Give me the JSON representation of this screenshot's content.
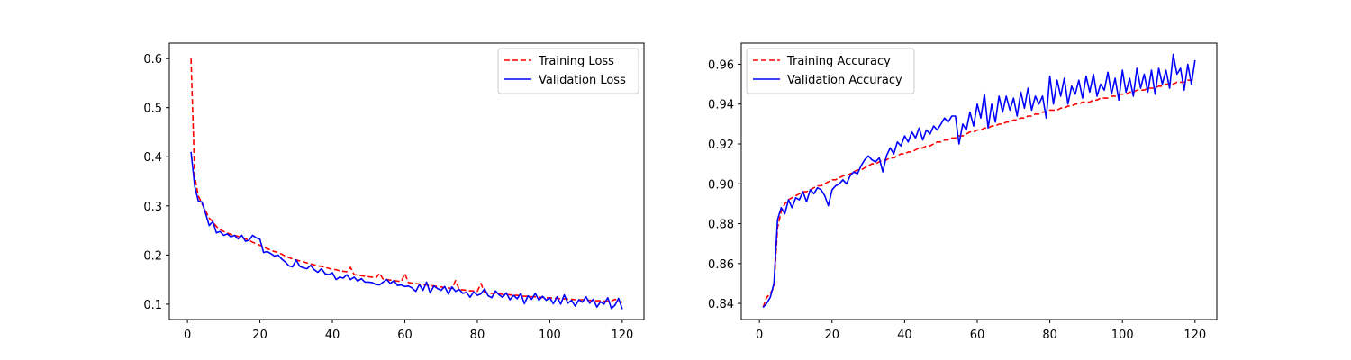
{
  "chart_data": [
    {
      "type": "line",
      "xlim": [
        -5,
        126
      ],
      "ylim": [
        0.0687,
        0.6314
      ],
      "xticks": [
        0,
        20,
        40,
        60,
        80,
        100,
        120
      ],
      "yticks": [
        0.1,
        0.2,
        0.3,
        0.4,
        0.5,
        0.6
      ],
      "xtick_labels": [
        "0",
        "20",
        "40",
        "60",
        "80",
        "100",
        "120"
      ],
      "ytick_labels": [
        "0.1",
        "0.2",
        "0.3",
        "0.4",
        "0.5",
        "0.6"
      ],
      "legend": "upper right",
      "grid": false,
      "series": [
        {
          "name": "Training Loss",
          "color": "#ff0000",
          "style": "dashed",
          "x_start": 1,
          "values": [
            0.6,
            0.36,
            0.32,
            0.305,
            0.29,
            0.275,
            0.268,
            0.258,
            0.252,
            0.248,
            0.245,
            0.242,
            0.24,
            0.238,
            0.236,
            0.233,
            0.23,
            0.226,
            0.223,
            0.22,
            0.217,
            0.213,
            0.21,
            0.207,
            0.205,
            0.202,
            0.198,
            0.195,
            0.192,
            0.19,
            0.188,
            0.186,
            0.184,
            0.182,
            0.18,
            0.178,
            0.177,
            0.175,
            0.173,
            0.171,
            0.17,
            0.168,
            0.167,
            0.166,
            0.175,
            0.16,
            0.159,
            0.158,
            0.157,
            0.156,
            0.155,
            0.153,
            0.163,
            0.151,
            0.15,
            0.149,
            0.148,
            0.147,
            0.146,
            0.162,
            0.144,
            0.143,
            0.142,
            0.141,
            0.14,
            0.139,
            0.138,
            0.137,
            0.136,
            0.135,
            0.134,
            0.133,
            0.132,
            0.148,
            0.13,
            0.129,
            0.128,
            0.127,
            0.127,
            0.126,
            0.142,
            0.124,
            0.123,
            0.122,
            0.122,
            0.121,
            0.12,
            0.12,
            0.119,
            0.118,
            0.118,
            0.117,
            0.116,
            0.116,
            0.115,
            0.115,
            0.114,
            0.114,
            0.113,
            0.113,
            0.112,
            0.112,
            0.111,
            0.111,
            0.11,
            0.11,
            0.109,
            0.109,
            0.109,
            0.108,
            0.108,
            0.107,
            0.107,
            0.107,
            0.106,
            0.106,
            0.106,
            0.11,
            0.105,
            0.104
          ]
        },
        {
          "name": "Validation Loss",
          "color": "#0000ff",
          "style": "solid",
          "x_start": 1,
          "values": [
            0.41,
            0.34,
            0.31,
            0.308,
            0.285,
            0.26,
            0.268,
            0.245,
            0.248,
            0.24,
            0.243,
            0.237,
            0.24,
            0.233,
            0.24,
            0.228,
            0.23,
            0.24,
            0.235,
            0.232,
            0.205,
            0.207,
            0.203,
            0.198,
            0.2,
            0.192,
            0.186,
            0.178,
            0.176,
            0.19,
            0.177,
            0.174,
            0.172,
            0.179,
            0.17,
            0.165,
            0.172,
            0.162,
            0.16,
            0.164,
            0.15,
            0.155,
            0.153,
            0.16,
            0.15,
            0.155,
            0.147,
            0.152,
            0.145,
            0.145,
            0.144,
            0.14,
            0.139,
            0.145,
            0.15,
            0.142,
            0.148,
            0.138,
            0.139,
            0.136,
            0.137,
            0.133,
            0.126,
            0.14,
            0.128,
            0.145,
            0.123,
            0.137,
            0.132,
            0.128,
            0.136,
            0.121,
            0.135,
            0.126,
            0.13,
            0.122,
            0.124,
            0.114,
            0.125,
            0.118,
            0.121,
            0.131,
            0.117,
            0.113,
            0.127,
            0.119,
            0.114,
            0.123,
            0.109,
            0.118,
            0.111,
            0.122,
            0.101,
            0.117,
            0.11,
            0.122,
            0.108,
            0.116,
            0.108,
            0.113,
            0.101,
            0.115,
            0.1,
            0.119,
            0.102,
            0.108,
            0.096,
            0.109,
            0.104,
            0.115,
            0.102,
            0.11,
            0.094,
            0.105,
            0.1,
            0.113,
            0.091,
            0.098,
            0.112,
            0.09
          ]
        }
      ]
    },
    {
      "type": "line",
      "xlim": [
        -5,
        126
      ],
      "ylim": [
        0.8319,
        0.9706
      ],
      "xticks": [
        0,
        20,
        40,
        60,
        80,
        100,
        120
      ],
      "yticks": [
        0.84,
        0.86,
        0.88,
        0.9,
        0.92,
        0.94,
        0.96
      ],
      "xtick_labels": [
        "0",
        "20",
        "40",
        "60",
        "80",
        "100",
        "120"
      ],
      "ytick_labels": [
        "0.84",
        "0.86",
        "0.88",
        "0.90",
        "0.92",
        "0.94",
        "0.96"
      ],
      "legend": "upper left",
      "grid": false,
      "series": [
        {
          "name": "Training Accuracy",
          "color": "#ff0000",
          "style": "dashed",
          "x_start": 1,
          "values": [
            0.838,
            0.843,
            0.845,
            0.848,
            0.878,
            0.886,
            0.89,
            0.892,
            0.893,
            0.894,
            0.895,
            0.896,
            0.896,
            0.897,
            0.898,
            0.899,
            0.899,
            0.9,
            0.901,
            0.902,
            0.902,
            0.903,
            0.904,
            0.904,
            0.905,
            0.906,
            0.907,
            0.907,
            0.908,
            0.909,
            0.91,
            0.91,
            0.911,
            0.912,
            0.912,
            0.913,
            0.913,
            0.914,
            0.915,
            0.915,
            0.916,
            0.916,
            0.917,
            0.918,
            0.918,
            0.919,
            0.919,
            0.92,
            0.921,
            0.921,
            0.922,
            0.922,
            0.923,
            0.923,
            0.924,
            0.924,
            0.925,
            0.926,
            0.926,
            0.927,
            0.927,
            0.928,
            0.928,
            0.929,
            0.929,
            0.93,
            0.93,
            0.931,
            0.931,
            0.932,
            0.932,
            0.933,
            0.933,
            0.934,
            0.934,
            0.935,
            0.935,
            0.936,
            0.936,
            0.937,
            0.937,
            0.937,
            0.938,
            0.938,
            0.939,
            0.939,
            0.94,
            0.94,
            0.941,
            0.941,
            0.941,
            0.942,
            0.942,
            0.943,
            0.943,
            0.943,
            0.944,
            0.944,
            0.945,
            0.945,
            0.945,
            0.946,
            0.946,
            0.947,
            0.947,
            0.947,
            0.948,
            0.948,
            0.948,
            0.949,
            0.949,
            0.95,
            0.95,
            0.95,
            0.951,
            0.951,
            0.951,
            0.952,
            0.952,
            0.953
          ]
        },
        {
          "name": "Validation Accuracy",
          "color": "#0000ff",
          "style": "solid",
          "x_start": 1,
          "values": [
            0.838,
            0.84,
            0.843,
            0.85,
            0.882,
            0.888,
            0.885,
            0.892,
            0.888,
            0.893,
            0.892,
            0.896,
            0.891,
            0.897,
            0.895,
            0.898,
            0.897,
            0.894,
            0.889,
            0.897,
            0.899,
            0.9,
            0.902,
            0.9,
            0.904,
            0.906,
            0.905,
            0.909,
            0.912,
            0.914,
            0.912,
            0.911,
            0.913,
            0.906,
            0.914,
            0.918,
            0.915,
            0.921,
            0.919,
            0.924,
            0.921,
            0.926,
            0.923,
            0.928,
            0.922,
            0.927,
            0.925,
            0.929,
            0.927,
            0.93,
            0.933,
            0.931,
            0.934,
            0.934,
            0.92,
            0.93,
            0.927,
            0.936,
            0.929,
            0.94,
            0.933,
            0.945,
            0.928,
            0.94,
            0.931,
            0.944,
            0.936,
            0.944,
            0.937,
            0.943,
            0.934,
            0.946,
            0.938,
            0.948,
            0.937,
            0.944,
            0.94,
            0.944,
            0.933,
            0.954,
            0.94,
            0.952,
            0.944,
            0.953,
            0.94,
            0.949,
            0.945,
            0.952,
            0.943,
            0.954,
            0.946,
            0.955,
            0.944,
            0.95,
            0.947,
            0.956,
            0.945,
            0.953,
            0.942,
            0.957,
            0.946,
            0.953,
            0.944,
            0.958,
            0.948,
            0.955,
            0.946,
            0.957,
            0.945,
            0.958,
            0.95,
            0.957,
            0.948,
            0.965,
            0.955,
            0.958,
            0.947,
            0.96,
            0.95,
            0.962
          ]
        }
      ]
    }
  ]
}
